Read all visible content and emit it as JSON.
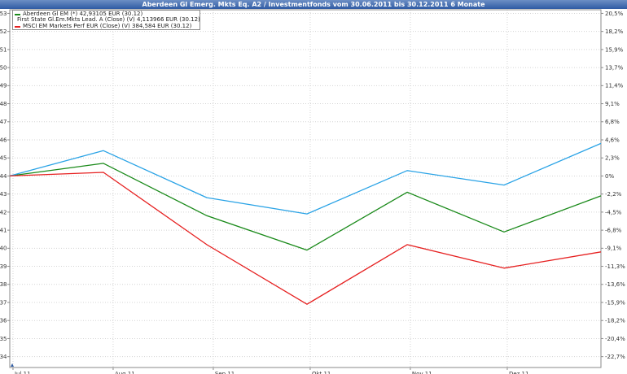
{
  "title": "Aberdeen Gl Emerg. Mkts Eq. A2 / Investmentfonds vom 30.06.2011 bis 30.12.2011 6 Monate",
  "legend": [
    {
      "label": "Aberdeen Gl EM  (*) 42,93105 EUR (30.12)",
      "color": "#1a8a1a"
    },
    {
      "label": "First State Gl.Em.Mkts Lead. A (Close) (V) 4,113966 EUR (30.12)",
      "color": "#2aa3e6"
    },
    {
      "label": "MSCI EM Markets Perf EUR (Close) (V) 384,584 EUR (30.12)",
      "color": "#e62020"
    }
  ],
  "chart_data": {
    "type": "line",
    "title": "Aberdeen Gl Emerg. Mkts Eq. A2 / Investmentfonds vom 30.06.2011 bis 30.12.2011 6 Monate",
    "x": [
      "30.06.2011",
      "29.07.2011",
      "30.08.2011",
      "30.09.2011",
      "31.10.2011",
      "30.11.2011",
      "30.12.2011"
    ],
    "x_ticks": [
      {
        "label": "Jul 11",
        "date": "2011-07-01"
      },
      {
        "label": "Aug 11",
        "date": "2011-08-01"
      },
      {
        "label": "Sep 11",
        "date": "2011-09-01"
      },
      {
        "label": "Okt 11",
        "date": "2011-10-01"
      },
      {
        "label": "Nov 11",
        "date": "2011-11-01"
      },
      {
        "label": "Dez 11",
        "date": "2011-12-01"
      }
    ],
    "xlim": [
      "2011-06-30",
      "2011-12-30"
    ],
    "ylim_left": [
      33.4,
      53.2
    ],
    "yticks_left": [
      53,
      52,
      51,
      50,
      49,
      48,
      47,
      46,
      45,
      44,
      43,
      42,
      41,
      40,
      39,
      38,
      37,
      36,
      35,
      34
    ],
    "yticks_right": [
      "20,5%",
      "18,2%",
      "15,9%",
      "13,7%",
      "11,4%",
      "9,1%",
      "6,8%",
      "4,6%",
      "2,3%",
      "0%",
      "-2,2%",
      "-4,5%",
      "-6,8%",
      "-9,1%",
      "-11,3%",
      "-13,6%",
      "-15,9%",
      "-18,2%",
      "-20,4%",
      "-22,7%"
    ],
    "grid": true,
    "legend_position": "top-left",
    "series": [
      {
        "name": "Aberdeen Gl EM  (*) 42,93105 EUR (30.12)",
        "color": "#1a8a1a",
        "values": [
          44.0,
          44.7,
          41.8,
          39.9,
          43.1,
          40.9,
          42.9
        ]
      },
      {
        "name": "First State Gl.Em.Mkts Lead. A (Close) (V) 4,113966 EUR (30.12)",
        "color": "#2aa3e6",
        "values": [
          44.0,
          45.4,
          42.8,
          41.9,
          44.3,
          43.5,
          45.8
        ]
      },
      {
        "name": "MSCI EM Markets Perf EUR (Close) (V) 384,584 EUR (30.12)",
        "color": "#e62020",
        "values": [
          44.0,
          44.2,
          40.2,
          36.9,
          40.2,
          38.9,
          39.8
        ]
      }
    ]
  }
}
